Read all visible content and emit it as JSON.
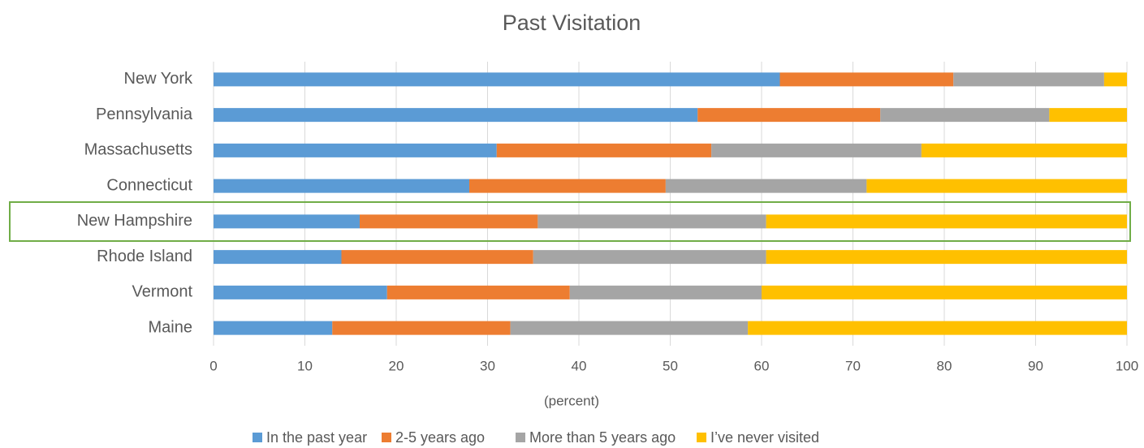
{
  "chart_data": {
    "type": "stacked_barh",
    "title": "Past Visitation",
    "categories": [
      "New York",
      "Pennsylvania",
      "Massachusetts",
      "Connecticut",
      "New Hampshire",
      "Rhode Island",
      "Vermont",
      "Maine"
    ],
    "series": [
      {
        "name": "In the past year",
        "color": "#5b9bd5",
        "values": [
          62,
          53,
          31,
          28,
          16,
          14,
          19,
          13
        ]
      },
      {
        "name": "2-5 years ago",
        "color": "#ed7d31",
        "values": [
          19,
          20,
          23.5,
          21.5,
          19.5,
          21,
          20,
          19.5
        ]
      },
      {
        "name": "More than 5 years ago",
        "color": "#a5a5a5",
        "values": [
          16.5,
          18.5,
          23,
          22,
          25,
          25.5,
          21,
          26
        ]
      },
      {
        "name": "I’ve never visited",
        "color": "#ffc000",
        "values": [
          2.5,
          8.5,
          22.5,
          28.5,
          39.5,
          39.5,
          40,
          41.5
        ]
      }
    ],
    "xlabel": "(percent)",
    "xlim": [
      0,
      100
    ],
    "xticks": [
      0,
      10,
      20,
      30,
      40,
      50,
      60,
      70,
      80,
      90,
      100
    ],
    "grid": true,
    "legend": "bottom"
  }
}
